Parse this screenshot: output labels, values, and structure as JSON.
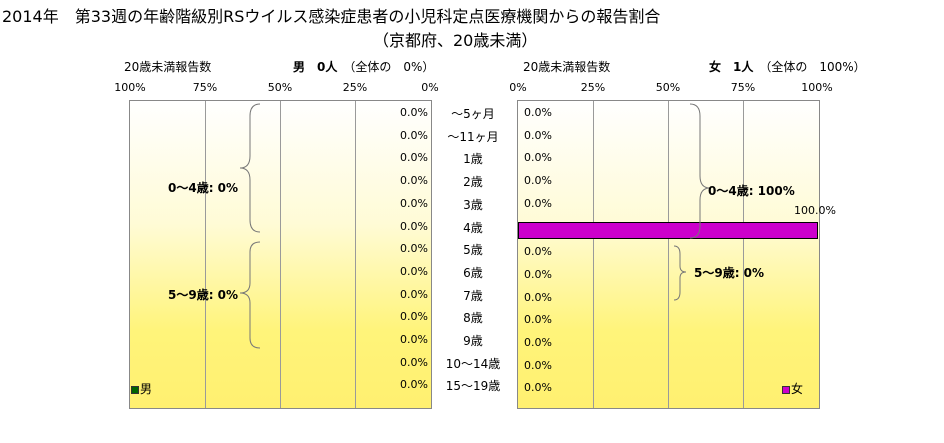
{
  "title": "2014年　第33週の年齢階級別RSウイルス感染症患者の小児科定点医療機関からの報告割合",
  "subtitle": "（京都府、20歳未満）",
  "left_panel": {
    "header_label": "20歳未満報告数",
    "header_summary_bold": "男　0人",
    "header_summary": "（全体の　0%）",
    "tick_labels": [
      "100%",
      "75%",
      "50%",
      "25%",
      "0%"
    ],
    "group_labels": [
      "0～4歳: 0%",
      "5～9歳: 0%"
    ],
    "legend": "男",
    "color": "#006400"
  },
  "right_panel": {
    "header_label": "20歳未満報告数",
    "header_summary_bold": "女　1人",
    "header_summary": "（全体の　100%）",
    "tick_labels": [
      "0%",
      "25%",
      "50%",
      "75%",
      "100%"
    ],
    "group_labels": [
      "0～4歳: 100%",
      "5～9歳: 0%"
    ],
    "legend": "女",
    "color": "#cc00cc"
  },
  "chart_data": {
    "type": "bar",
    "title": "2014年　第33週の年齢階級別RSウイルス感染症患者の小児科定点医療機関からの報告割合",
    "subtitle": "（京都府、20歳未満）",
    "categories": [
      "～5ヶ月",
      "～11ヶ月",
      "1歳",
      "2歳",
      "3歳",
      "4歳",
      "5歳",
      "6歳",
      "7歳",
      "8歳",
      "9歳",
      "10～14歳",
      "15～19歳"
    ],
    "series": [
      {
        "name": "男",
        "values": [
          0,
          0,
          0,
          0,
          0,
          0,
          0,
          0,
          0,
          0,
          0,
          0,
          0
        ],
        "labels": [
          "0.0%",
          "0.0%",
          "0.0%",
          "0.0%",
          "0.0%",
          "0.0%",
          "0.0%",
          "0.0%",
          "0.0%",
          "0.0%",
          "0.0%",
          "0.0%",
          "0.0%"
        ]
      },
      {
        "name": "女",
        "values": [
          0,
          0,
          0,
          0,
          0,
          100,
          0,
          0,
          0,
          0,
          0,
          0,
          0
        ],
        "labels": [
          "0.0%",
          "0.0%",
          "0.0%",
          "0.0%",
          "0.0%",
          "100.0%",
          "0.0%",
          "0.0%",
          "0.0%",
          "0.0%",
          "0.0%",
          "0.0%",
          "0.0%"
        ]
      }
    ],
    "xlim": [
      0,
      100
    ],
    "grid": true
  }
}
